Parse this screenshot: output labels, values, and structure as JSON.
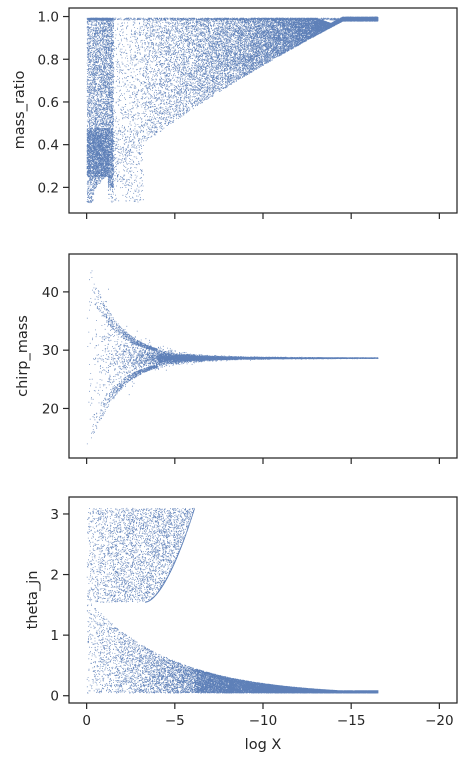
{
  "colors": {
    "points": "#4c72b0",
    "axes": "#262626",
    "background": "#ffffff"
  },
  "chart_data": [
    {
      "type": "scatter",
      "title": "",
      "xlabel": "",
      "ylabel": "mass_ratio",
      "xlim": [
        1,
        -21
      ],
      "ylim": [
        0.08,
        1.04
      ],
      "xticks": [
        0,
        -5,
        -10,
        -15,
        -20
      ],
      "xtick_labels": [
        "",
        "",
        "",
        "",
        ""
      ],
      "yticks": [
        0.2,
        0.4,
        0.6,
        0.8,
        1.0
      ],
      "ytick_labels": [
        "0.2",
        "0.4",
        "0.6",
        "0.8",
        "1.0"
      ],
      "grid": false,
      "series": [
        {
          "color": "#4c72b0",
          "marker_size": 0.9,
          "point_count": 26000
        }
      ]
    },
    {
      "type": "scatter",
      "title": "",
      "xlabel": "",
      "ylabel": "chirp_mass",
      "xlim": [
        1,
        -21
      ],
      "ylim": [
        11.5,
        46.5
      ],
      "xticks": [
        0,
        -5,
        -10,
        -15,
        -20
      ],
      "xtick_labels": [
        "",
        "",
        "",
        "",
        ""
      ],
      "yticks": [
        20,
        30,
        40
      ],
      "ytick_labels": [
        "20",
        "30",
        "40"
      ],
      "grid": false,
      "series": [
        {
          "color": "#4c72b0",
          "marker_size": 0.9,
          "point_count": 22000
        }
      ]
    },
    {
      "type": "scatter",
      "title": "",
      "xlabel": "log X",
      "ylabel": "theta_jn",
      "xlim": [
        1,
        -21
      ],
      "ylim": [
        -0.12,
        3.28
      ],
      "xticks": [
        0,
        -5,
        -10,
        -15,
        -20
      ],
      "xtick_labels": [
        "0",
        "−5",
        "−10",
        "−15",
        "−20"
      ],
      "yticks": [
        0,
        1,
        2,
        3
      ],
      "ytick_labels": [
        "0",
        "1",
        "2",
        "3"
      ],
      "grid": false,
      "series": [
        {
          "color": "#4c72b0",
          "marker_size": 0.9,
          "point_count": 26000
        }
      ]
    }
  ]
}
